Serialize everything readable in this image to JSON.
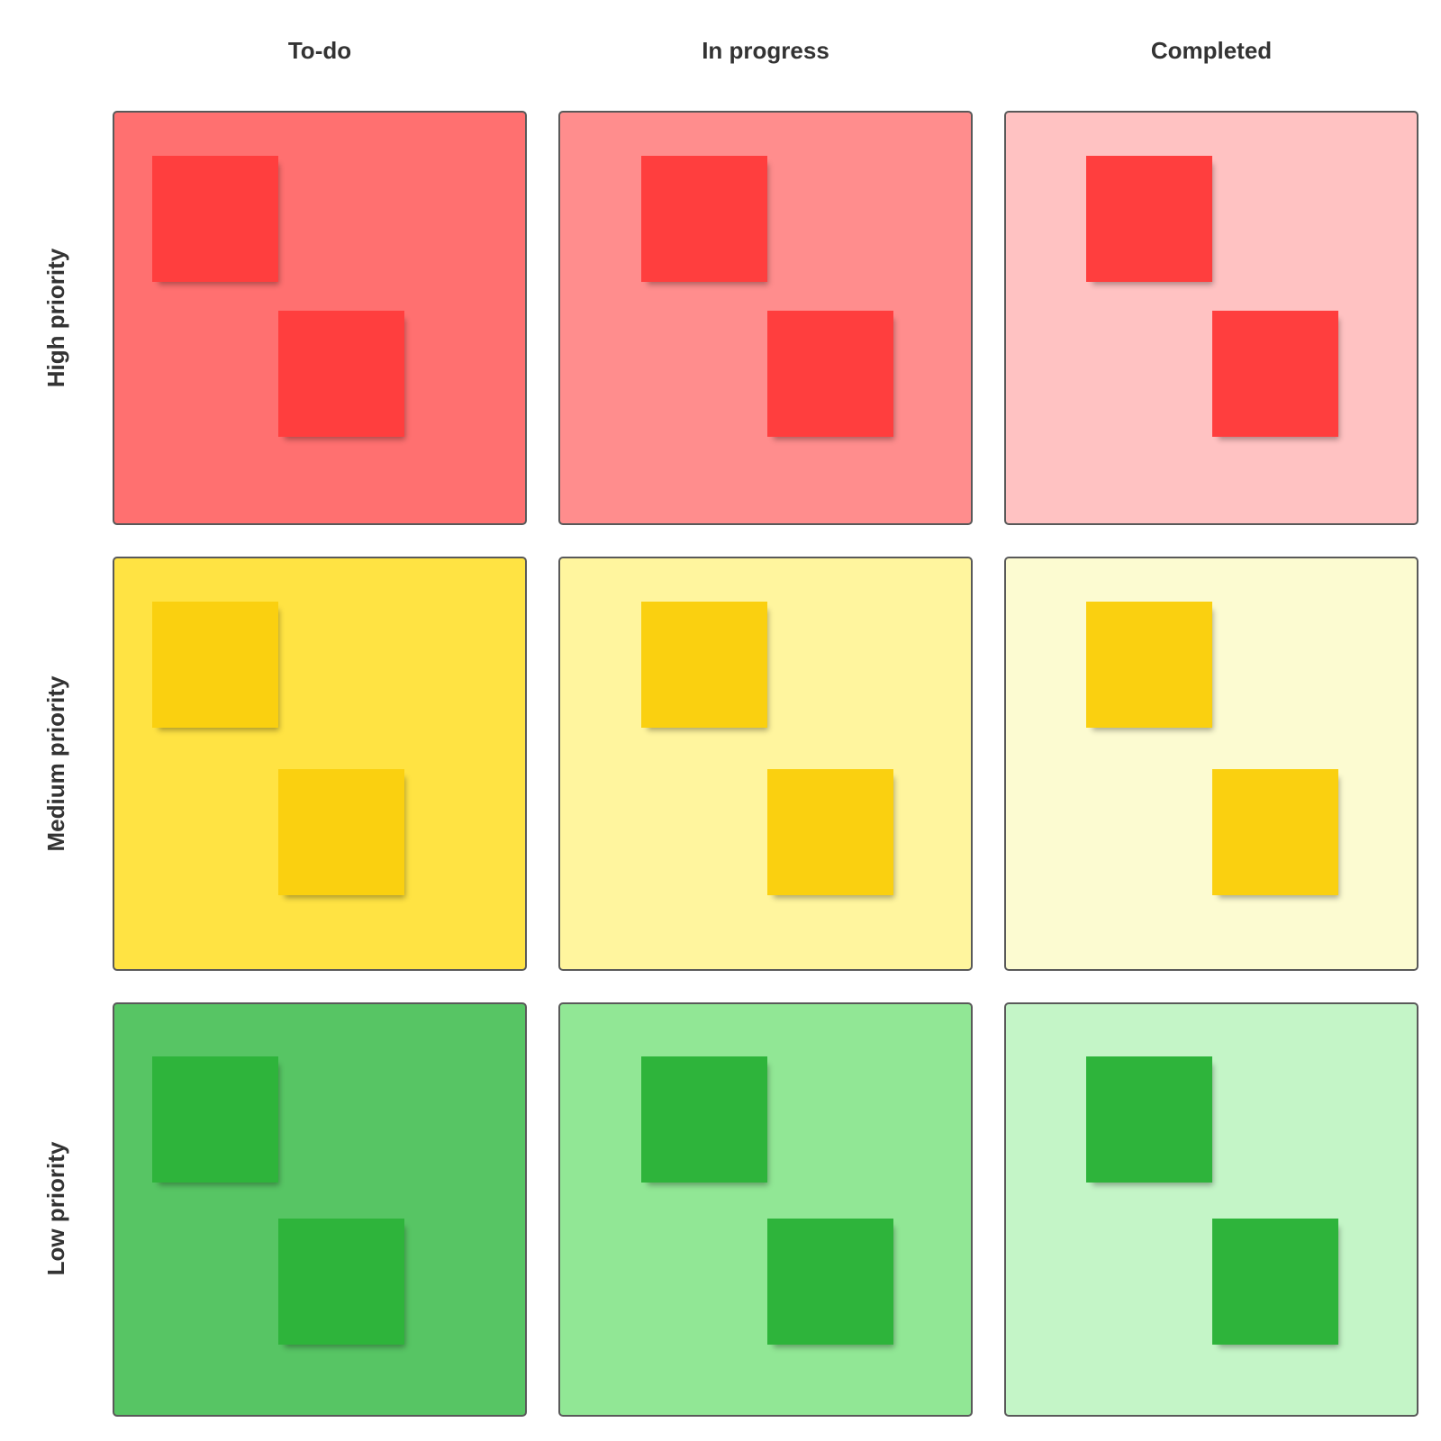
{
  "columns": [
    {
      "label": "To-do"
    },
    {
      "label": "In progress"
    },
    {
      "label": "Completed"
    }
  ],
  "rows": [
    {
      "label": "High priority",
      "note_color": "#FF3E3E",
      "cell_colors": [
        "#FF7070",
        "#FF8D8D",
        "#FFC2C2"
      ]
    },
    {
      "label": "Medium priority",
      "note_color": "#FAD010",
      "cell_colors": [
        "#FFE343",
        "#FFF59E",
        "#FCFBD1"
      ]
    },
    {
      "label": "Low priority",
      "note_color": "#2EB43B",
      "cell_colors": [
        "#57C564",
        "#91E795",
        "#C4F5C7"
      ]
    }
  ]
}
